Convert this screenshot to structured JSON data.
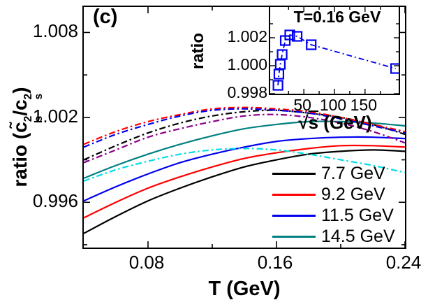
{
  "figure": {
    "panel_label": "(c)",
    "background": "#ffffff",
    "frame_color": "#000000"
  },
  "legend": {
    "position": "lower-right-inside",
    "items": [
      {
        "label": "7.7 GeV",
        "color": "#000000",
        "style": "solid"
      },
      {
        "label": "9.2 GeV",
        "color": "#ff0000",
        "style": "solid"
      },
      {
        "label": "11.5 GeV",
        "color": "#0000ee",
        "style": "solid"
      },
      {
        "label": "14.5 GeV",
        "color": "#008080",
        "style": "solid"
      }
    ]
  },
  "chart_data": [
    {
      "id": "main",
      "type": "line",
      "title": "",
      "xlabel": "T (GeV)",
      "ylabel": "ratio (c̃s²/cs²)",
      "ylabel_parts": {
        "pre": "ratio (",
        "c_tilde": "c̃",
        "c_plain": "c",
        "sup": "2",
        "sub": "s",
        "slash": "/",
        "close": ")"
      },
      "xlim": [
        0.04,
        0.24
      ],
      "ylim": [
        0.9928,
        1.0098
      ],
      "grid": false,
      "xticks_major": [
        0.08,
        0.16,
        0.24
      ],
      "xtick_labels": [
        "0.08",
        "0.16",
        "0.24"
      ],
      "xticks_minor": [
        0.12,
        0.2
      ],
      "yticks_major": [
        0.996,
        1.002,
        1.008
      ],
      "ytick_labels": [
        "0.996",
        "1.002",
        "1.008"
      ],
      "yticks_minor": [
        0.993,
        0.999,
        1.005
      ],
      "x": [
        0.04,
        0.06,
        0.08,
        0.1,
        0.12,
        0.14,
        0.16,
        0.18,
        0.2,
        0.22,
        0.24
      ],
      "series": [
        {
          "name": "7.7 GeV",
          "color": "#000000",
          "style": "solid",
          "values": [
            0.9938,
            0.995,
            0.9961,
            0.997,
            0.9978,
            0.9985,
            0.999,
            0.9994,
            0.9996,
            0.9997,
            0.9996
          ]
        },
        {
          "name": "9.2 GeV",
          "color": "#ff0000",
          "style": "solid",
          "values": [
            0.9949,
            0.996,
            0.997,
            0.9978,
            0.9985,
            0.9991,
            0.9995,
            0.9998,
            1.0,
            1.0,
            0.9999
          ]
        },
        {
          "name": "11.5 GeV",
          "color": "#0000ee",
          "style": "solid",
          "values": [
            0.9961,
            0.9971,
            0.998,
            0.9988,
            0.9994,
            0.9999,
            1.0003,
            1.0005,
            1.0006,
            1.0006,
            1.0005
          ]
        },
        {
          "name": "14.5 GeV",
          "color": "#008080",
          "style": "solid",
          "values": [
            0.9977,
            0.9986,
            0.9994,
            1.0001,
            1.0007,
            1.0012,
            1.0015,
            1.0017,
            1.0017,
            1.0016,
            1.0014
          ]
        },
        {
          "name": "black dash-dot",
          "color": "#000000",
          "style": "dash-dot",
          "values": [
            0.999,
            1.0,
            1.0009,
            1.0016,
            1.0021,
            1.0024,
            1.0025,
            1.0023,
            1.002,
            1.0015,
            1.0008
          ]
        },
        {
          "name": "red dash-dot",
          "color": "#ff0000",
          "style": "dash-dot",
          "values": [
            1.0001,
            1.001,
            1.0017,
            1.0022,
            1.0026,
            1.0027,
            1.0026,
            1.0024,
            1.002,
            1.0015,
            1.001
          ]
        },
        {
          "name": "blue dash-dot",
          "color": "#0000ee",
          "style": "dash-dot",
          "values": [
            0.9999,
            1.0008,
            1.0015,
            1.0021,
            1.0025,
            1.0026,
            1.0025,
            1.0023,
            1.0019,
            1.0014,
            1.0009
          ]
        },
        {
          "name": "purple dash-dot",
          "color": "#8b008b",
          "style": "dash-dot",
          "values": [
            0.9988,
            0.9997,
            1.0006,
            1.0012,
            1.0017,
            1.0021,
            1.0022,
            1.002,
            1.0016,
            1.001,
            1.0002
          ]
        },
        {
          "name": "cyan dash-dot",
          "color": "#00dde6",
          "style": "dash-dot",
          "values": [
            0.9975,
            0.9983,
            0.9989,
            0.9994,
            0.9997,
            0.9998,
            0.9997,
            0.9994,
            0.999,
            0.9986,
            0.9981
          ]
        }
      ]
    },
    {
      "id": "inset",
      "type": "scatter",
      "title": "T=0.16 GeV",
      "xlabel": "√s (GeV)",
      "xlabel_parts": {
        "radical": "√",
        "arg": "s",
        "unit": " (GeV)"
      },
      "ylabel": "ratio",
      "xlim": [
        -5,
        205
      ],
      "ylim": [
        0.998,
        1.0042
      ],
      "grid": false,
      "xticks_major": [
        50,
        100,
        150
      ],
      "xtick_labels": [
        "50",
        "100",
        "150"
      ],
      "xticks_minor": [
        25,
        75,
        125,
        175
      ],
      "yticks_major": [
        0.998,
        1.0,
        1.002
      ],
      "ytick_labels": [
        "0.998",
        "1.000",
        "1.002"
      ],
      "yticks_minor": [
        0.999,
        1.001,
        1.003
      ],
      "marker": {
        "shape": "open-square",
        "color": "#0000ee",
        "size": 13
      },
      "line_style": "dash-dot",
      "line_color": "#0000ee",
      "points": {
        "x": [
          7.7,
          9.2,
          11.5,
          14.5,
          19.6,
          27,
          39,
          62,
          200
        ],
        "y": [
          0.9986,
          0.9994,
          1.0001,
          1.0008,
          1.0018,
          1.0022,
          1.0021,
          1.0015,
          0.9998
        ]
      }
    }
  ]
}
